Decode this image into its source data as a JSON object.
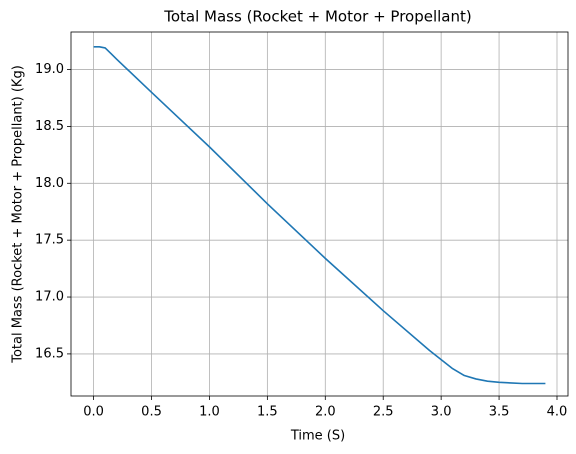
{
  "chart_data": {
    "type": "line",
    "title": "Total Mass (Rocket + Motor + Propellant)",
    "x_label": "Time (S)",
    "y_label": "Total Mass (Rocket + Motor + Propellant) (Kg)",
    "x": [
      0,
      0.05,
      0.1,
      0.15,
      0.2,
      0.5,
      1.0,
      1.5,
      2.0,
      2.5,
      2.9,
      3.0,
      3.1,
      3.2,
      3.3,
      3.4,
      3.5,
      3.6,
      3.7,
      3.8,
      3.9
    ],
    "series": [
      {
        "color": "#1f77b4",
        "values": [
          19.2,
          19.2,
          19.19,
          19.14,
          19.09,
          18.8,
          18.32,
          17.82,
          17.34,
          16.88,
          16.53,
          16.45,
          16.37,
          16.31,
          16.28,
          16.26,
          16.25,
          16.245,
          16.24,
          16.24,
          16.24
        ]
      }
    ],
    "xlim": [
      -0.195,
      4.095
    ],
    "ylim": [
      16.13,
      19.33
    ],
    "xticks": [
      {
        "value": 0,
        "label": "0.0"
      },
      0.5,
      {
        "value": 1,
        "label": "1.0"
      },
      1.5,
      {
        "value": 2,
        "label": "2.0"
      },
      2.5,
      {
        "value": 3,
        "label": "3.0"
      },
      3.5,
      {
        "value": 4,
        "label": "4.0"
      }
    ],
    "yticks": [
      16.5,
      {
        "value": 17,
        "label": "17.0"
      },
      17.5,
      {
        "value": 18,
        "label": "18.0"
      },
      18.5,
      {
        "value": 19,
        "label": "19.0"
      }
    ],
    "grid": true
  }
}
